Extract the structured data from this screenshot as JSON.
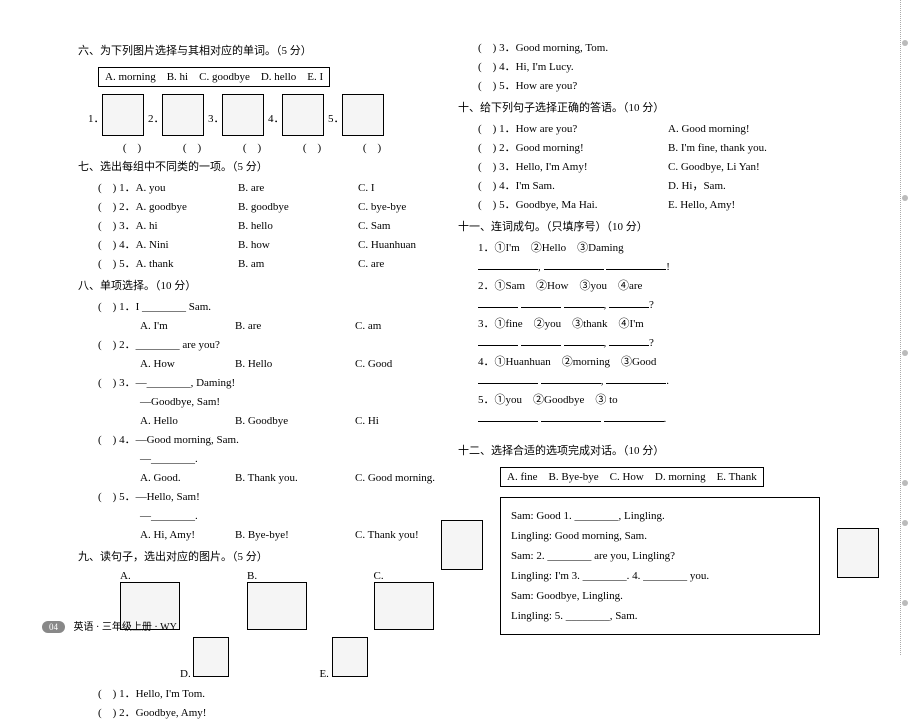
{
  "q6": {
    "title": "六、为下列图片选择与其相对应的单词。（5 分）",
    "box": "A. morning B. hi C. goodbye D. hello E. I",
    "nums": [
      "1．",
      "2．",
      "3．",
      "4．",
      "5．"
    ],
    "paren": "( )"
  },
  "q7": {
    "title": "七、选出每组中不同类的一项。（5 分）",
    "rows": [
      [
        "( ) 1．A. you",
        "B. are",
        "C. I"
      ],
      [
        "( ) 2．A. goodbye",
        "B. goodbye",
        "C. bye-bye"
      ],
      [
        "( ) 3．A. hi",
        "B. hello",
        "C. Sam"
      ],
      [
        "( ) 4．A. Nini",
        "B. how",
        "C. Huanhuan"
      ],
      [
        "( ) 5．A. thank",
        "B. am",
        "C. are"
      ]
    ]
  },
  "q8": {
    "title": "八、单项选择。（10 分）",
    "items": [
      {
        "q": "( ) 1．I ________ Sam.",
        "opts": [
          "A. I'm",
          "B. are",
          "C. am"
        ]
      },
      {
        "q": "( ) 2．________ are you?",
        "opts": [
          "A. How",
          "B. Hello",
          "C. Good"
        ]
      },
      {
        "q": "( ) 3．—________, Daming!",
        "q2": "—Goodbye, Sam!",
        "opts": [
          "A. Hello",
          "B. Goodbye",
          "C. Hi"
        ]
      },
      {
        "q": "( ) 4．—Good morning, Sam.",
        "q2": "—________.",
        "opts": [
          "A. Good.",
          "B. Thank you.",
          "C. Good morning."
        ]
      },
      {
        "q": "( ) 5．—Hello, Sam!",
        "q2": "—________.",
        "opts": [
          "A. Hi, Amy!",
          "B. Bye-bye!",
          "C. Thank you!"
        ]
      }
    ]
  },
  "q9": {
    "title": "九、读句子，选出对应的图片。（5 分）",
    "labels": [
      "A.",
      "B.",
      "C.",
      "D.",
      "E."
    ],
    "items": [
      "( ) 1．Hello, I'm Tom.",
      "( ) 2．Goodbye, Amy!"
    ]
  },
  "q9r": [
    "( ) 3．Good morning, Tom.",
    "( ) 4．Hi, I'm Lucy.",
    "( ) 5．How are you?"
  ],
  "q10": {
    "title": "十、给下列句子选择正确的答语。（10 分）",
    "rows": [
      [
        "( ) 1．How are you?",
        "A. Good morning!"
      ],
      [
        "( ) 2．Good morning!",
        "B. I'm fine, thank you."
      ],
      [
        "( ) 3．Hello, I'm Amy!",
        "C. Goodbye, Li Yan!"
      ],
      [
        "( ) 4．I'm Sam.",
        "D. Hi，Sam."
      ],
      [
        "( ) 5．Goodbye, Ma Hai.",
        "E. Hello, Amy!"
      ]
    ]
  },
  "q11": {
    "title": "十一、连词成句。（只填序号）（10 分）",
    "items": [
      "1．①I'm ②Hello ③Daming",
      "2．①Sam ②How ③you ④are",
      "3．①fine ②you ③thank ④I'm",
      "4．①Huanhuan ②morning ③Good",
      "5．①you ②Goodbye ③ to"
    ]
  },
  "q12": {
    "title": "十二、选择合适的选项完成对话。（10 分）",
    "box": "A. fine B. Bye-bye C. How D. morning E. Thank",
    "lines": [
      "Sam: Good 1. ________, Lingling.",
      "Lingling: Good morning, Sam.",
      "Sam: 2. ________ are you, Lingling?",
      "Lingling: I'm 3. ________. 4. ________ you.",
      "Sam: Goodbye, Lingling.",
      "Lingling: 5. ________, Sam."
    ]
  },
  "footer": {
    "page": "04",
    "text": "英语 · 三年级上册 · WY"
  }
}
